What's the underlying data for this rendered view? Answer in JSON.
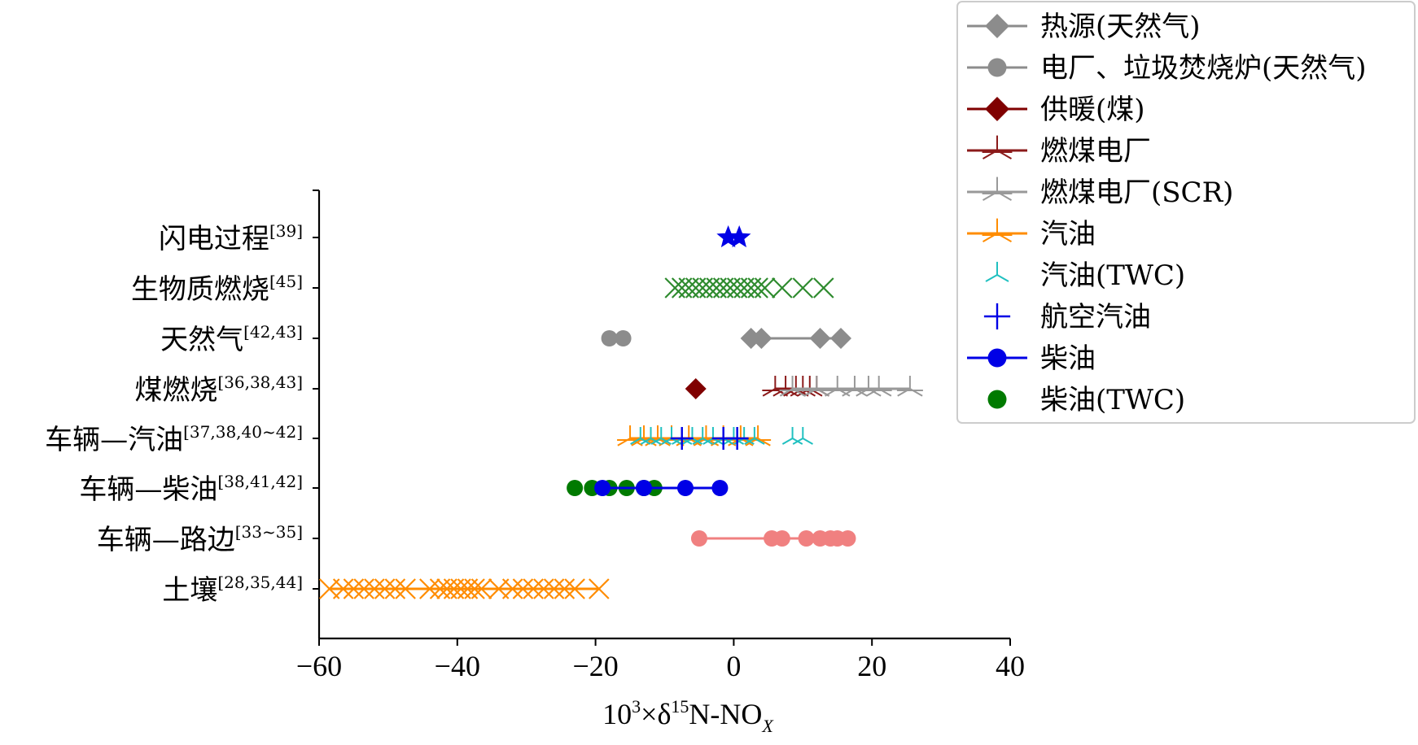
{
  "chart_data": {
    "type": "scatter",
    "xlabel": {
      "prefix": "10",
      "sup1": "3",
      "mid": "×δ",
      "sup2": "15",
      "main": "N-NO",
      "sub": "X"
    },
    "xlim": [
      -60,
      40
    ],
    "xticks": [
      -60,
      -40,
      -20,
      0,
      20,
      40
    ],
    "xtick_labels": [
      "−60",
      "−40",
      "−20",
      "0",
      "20",
      "40"
    ],
    "categories": [
      {
        "label": "闪电过程",
        "ref": "[39]"
      },
      {
        "label": "生物质燃烧",
        "ref": "[45]"
      },
      {
        "label": "天然气",
        "ref": "[42,43]"
      },
      {
        "label": "煤燃烧",
        "ref": "[36,38,43]"
      },
      {
        "label": "车辆—汽油",
        "ref": "[37,38,40~42]"
      },
      {
        "label": "车辆—柴油",
        "ref": "[38,41,42]"
      },
      {
        "label": "车辆—路边",
        "ref": "[33~35]"
      },
      {
        "label": "土壤",
        "ref": "[28,35,44]"
      }
    ],
    "legend": {
      "placement": "top-right",
      "entries": [
        {
          "label": "热源(天然气)",
          "color": "#8c8c8c",
          "marker": "diamond",
          "line": true
        },
        {
          "label": "电厂、垃圾焚烧炉(天然气)",
          "color": "#8c8c8c",
          "marker": "circle",
          "line": true
        },
        {
          "label": "供暖(煤)",
          "color": "#800000",
          "marker": "diamond",
          "line": true
        },
        {
          "label": "燃煤电厂",
          "color": "#8b1a1a",
          "marker": "tri_star",
          "line": true
        },
        {
          "label": "燃煤电厂(SCR)",
          "color": "#999999",
          "marker": "tri_star",
          "line": true
        },
        {
          "label": "汽油",
          "color": "#ff8c00",
          "marker": "tri_star",
          "line": true
        },
        {
          "label": "汽油(TWC)",
          "color": "#20c0c0",
          "marker": "tri_up",
          "line": false
        },
        {
          "label": "航空汽油",
          "color": "#0000e6",
          "marker": "plus",
          "line": false
        },
        {
          "label": "柴油",
          "color": "#0000e6",
          "marker": "circle",
          "line": true
        },
        {
          "label": "柴油(TWC)",
          "color": "#007a00",
          "marker": "circle",
          "line": false
        }
      ]
    },
    "series": [
      {
        "category": 0,
        "marker": "star",
        "color": "#0000e6",
        "line": false,
        "x": [
          -0.8,
          0.8
        ]
      },
      {
        "category": 1,
        "marker": "x",
        "color": "#2e8b2e",
        "line": false,
        "x": [
          -8.5,
          -7.5,
          -6.5,
          -5.5,
          -4.5,
          -3.5,
          -2.5,
          -1.5,
          -0.5,
          0.5,
          1.5,
          2.5,
          3.5,
          4.5,
          7,
          10,
          13
        ]
      },
      {
        "category": 2,
        "marker": "circle",
        "color": "#8c8c8c",
        "line": false,
        "x": [
          -18,
          -16
        ]
      },
      {
        "category": 2,
        "marker": "diamond",
        "color": "#8c8c8c",
        "line": true,
        "x": [
          2.5,
          4,
          12.5,
          15.5
        ]
      },
      {
        "category": 3,
        "marker": "diamond",
        "color": "#800000",
        "line": false,
        "x": [
          -5.5
        ]
      },
      {
        "category": 3,
        "marker": "tri_star",
        "color": "#8b1a1a",
        "line": true,
        "x": [
          6,
          7.5,
          9,
          10,
          11,
          12
        ]
      },
      {
        "category": 3,
        "marker": "tri_star",
        "color": "#999999",
        "line": true,
        "x": [
          8.5,
          12,
          15,
          17.5,
          19.5,
          21,
          25.5
        ]
      },
      {
        "category": 4,
        "marker": "tri_star",
        "color": "#ff8c00",
        "line": true,
        "x": [
          -15,
          -13,
          -11,
          -9,
          -6.5,
          -4,
          -1.5,
          1,
          3.5
        ]
      },
      {
        "category": 4,
        "marker": "tri_up",
        "color": "#20c0c0",
        "line": false,
        "x": [
          -13.5,
          -12,
          -10.5,
          -9,
          -7.5,
          -6,
          -4.5,
          -3,
          -1.5,
          0,
          1.5,
          3,
          8.5,
          10
        ]
      },
      {
        "category": 4,
        "marker": "plus",
        "color": "#0000e6",
        "line": false,
        "x": [
          -7.5,
          -1.5,
          0.5
        ]
      },
      {
        "category": 5,
        "marker": "circle",
        "color": "#007a00",
        "line": false,
        "x": [
          -23,
          -20.5,
          -18,
          -15.5,
          -13,
          -11.5
        ]
      },
      {
        "category": 5,
        "marker": "circle",
        "color": "#0000e6",
        "line": true,
        "x": [
          -19,
          -13,
          -7,
          -2
        ]
      },
      {
        "category": 6,
        "marker": "circle",
        "color": "#f08080",
        "line": true,
        "x": [
          -5,
          5.5,
          7,
          10.5,
          12.5,
          14,
          15,
          16.5
        ]
      },
      {
        "category": 7,
        "marker": "x",
        "color": "#ff8c00",
        "line": true,
        "x": [
          -58.5,
          -56.5,
          -55,
          -53.5,
          -52,
          -50.5,
          -49,
          -47.5,
          -44,
          -42.5,
          -41.5,
          -40.5,
          -39.5,
          -38.5,
          -37.5,
          -36.5,
          -34,
          -32,
          -30.5,
          -29,
          -27.5,
          -26,
          -24.5,
          -23,
          -19.5
        ]
      }
    ]
  }
}
